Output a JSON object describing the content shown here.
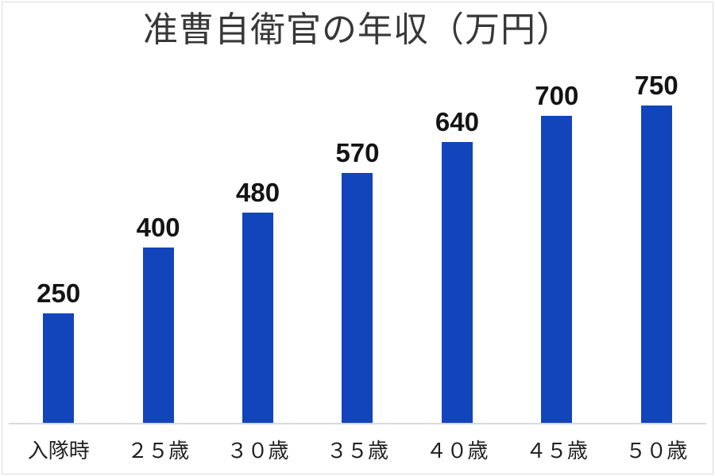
{
  "chart": {
    "title": "准曹自衛官の年収（万円）"
  },
  "chart_data": {
    "type": "bar",
    "title": "准曹自衛官の年収（万円）",
    "categories": [
      "入隊時",
      "２５歳",
      "３０歳",
      "３５歳",
      "４０歳",
      "４５歳",
      "５０歳"
    ],
    "values": [
      250,
      400,
      480,
      570,
      640,
      700,
      750
    ],
    "value_labels": [
      "250",
      "400",
      "480",
      "570",
      "640",
      "700",
      "750"
    ],
    "xlabel": "",
    "ylabel": "",
    "ylim": [
      0,
      800
    ],
    "grid": false,
    "legend": false,
    "bar_color": "#1245bc",
    "axis_line_color": "#d9d9d9",
    "value_label_color": "#141414",
    "title_color": "#383838"
  }
}
